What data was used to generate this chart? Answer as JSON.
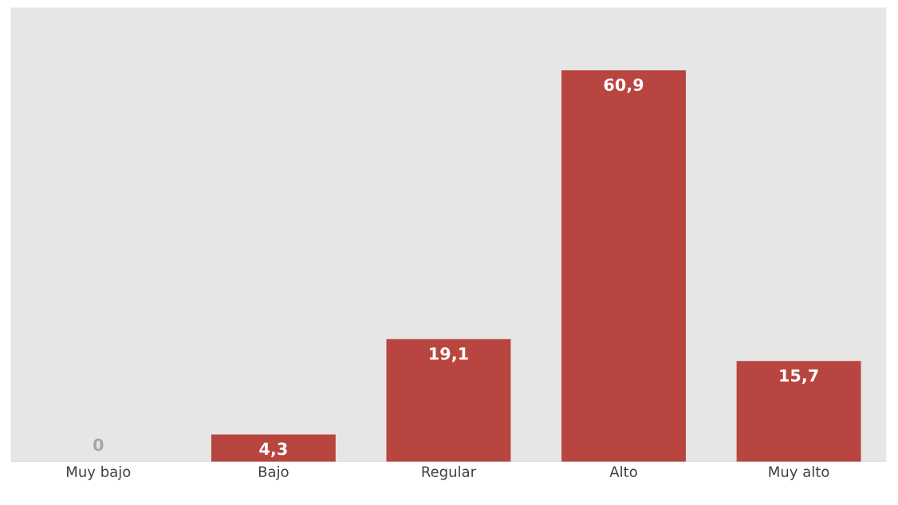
{
  "chart_data": {
    "type": "bar",
    "categories": [
      "Muy bajo",
      "Bajo",
      "Regular",
      "Alto",
      "Muy alto"
    ],
    "values": [
      0,
      4.3,
      19.1,
      60.9,
      15.7
    ],
    "value_labels": [
      "0",
      "4,3",
      "19,1",
      "60,9",
      "15,7"
    ],
    "color": "#b8453f"
  }
}
